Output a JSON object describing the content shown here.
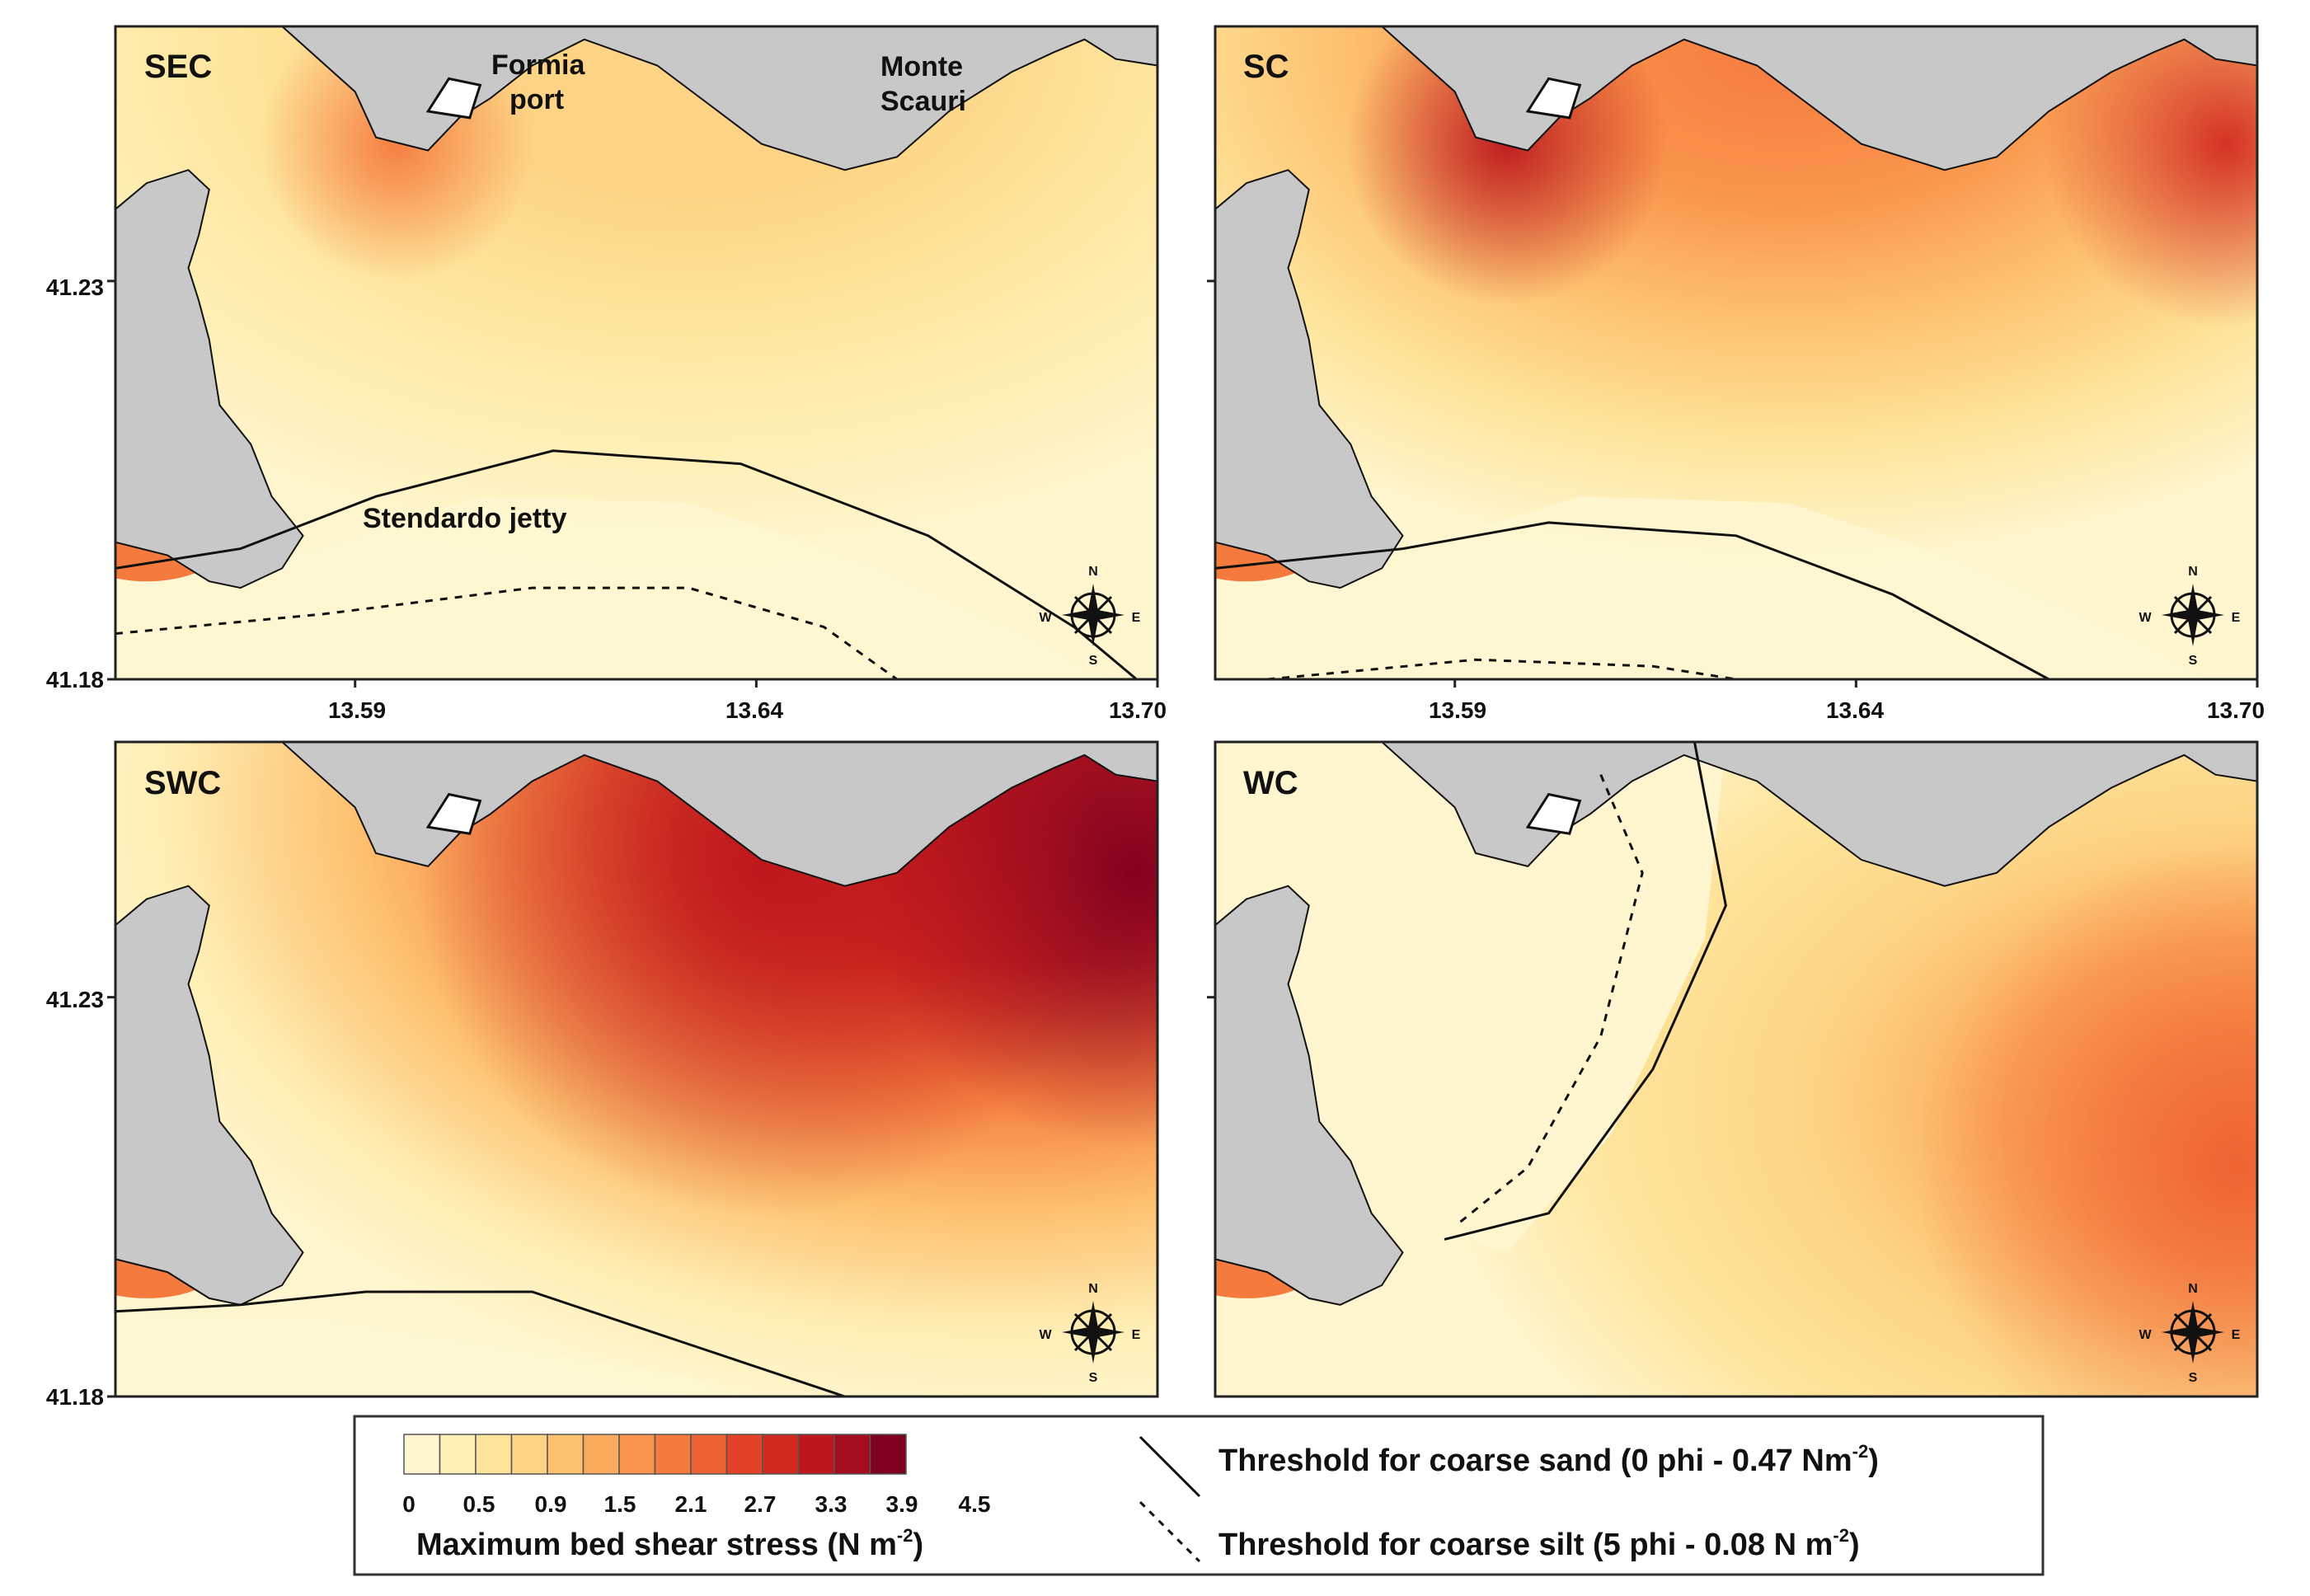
{
  "panels": [
    {
      "id": "SEC",
      "label": "SEC",
      "intensity": 0.28,
      "silt": "offshore",
      "hot": [
        [
          0.27,
          0.18,
          0.06,
          0.55
        ]
      ]
    },
    {
      "id": "SC",
      "label": "SC",
      "intensity": 0.55,
      "silt": "edge",
      "hot": [
        [
          0.28,
          0.18,
          0.07,
          0.8
        ],
        [
          0.97,
          0.18,
          0.08,
          0.75
        ]
      ]
    },
    {
      "id": "SWC",
      "label": "SWC",
      "intensity": 0.85,
      "silt": "none",
      "hot": [
        [
          0.98,
          0.2,
          0.12,
          1.0
        ],
        [
          0.62,
          0.2,
          0.15,
          0.85
        ]
      ]
    },
    {
      "id": "WC",
      "label": "WC",
      "intensity": 0.45,
      "silt": "west",
      "hot": [
        [
          0.98,
          0.65,
          0.14,
          0.6
        ]
      ]
    }
  ],
  "place_labels": [
    {
      "text": "Formia",
      "panel": 0
    },
    {
      "text": "port",
      "panel": 0
    },
    {
      "text": "Monte",
      "panel": 0
    },
    {
      "text": "Scauri",
      "panel": 0
    },
    {
      "text": "Stendardo jetty",
      "panel": 0
    }
  ],
  "axes": {
    "lat_ticks": [
      "41.23",
      "41.18"
    ],
    "lon_ticks": [
      "13.59",
      "13.64",
      "13.70"
    ]
  },
  "compass": {
    "n": "N",
    "s": "S",
    "e": "E",
    "w": "W"
  },
  "legend": {
    "title": "Maximum bed shear stress (N m",
    "title_exp": "-2",
    "title_close": ")",
    "tick_labels": [
      "0",
      "0.5",
      "0.9",
      "1.5",
      "2.1",
      "2.7",
      "3.3",
      "3.9",
      "4.5"
    ],
    "colors": [
      "#fff6d0",
      "#ffefb6",
      "#fee49b",
      "#fdd486",
      "#fdc06f",
      "#fcab5c",
      "#f9934c",
      "#f57a3e",
      "#ef6032",
      "#e34228",
      "#d32a20",
      "#bd171c",
      "#a30d1e",
      "#800020"
    ]
  },
  "thresholds": [
    {
      "text": "Threshold for coarse sand (0 phi - 0.47 Nm",
      "exp": "-2",
      "close": ")"
    },
    {
      "text": "Threshold for coarse silt (5 phi - 0.08 N m",
      "exp": "-2",
      "close": ")"
    }
  ],
  "land_color": "#c8c8c8"
}
